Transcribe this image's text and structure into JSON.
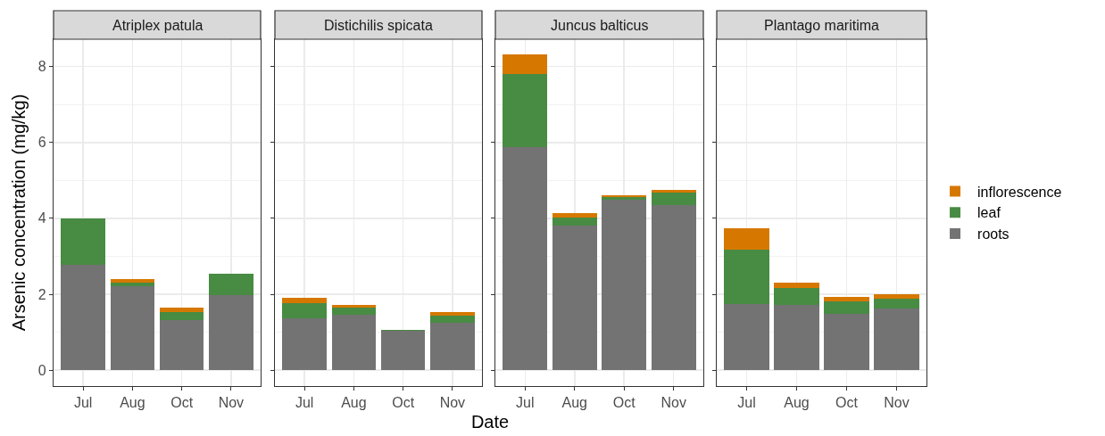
{
  "chart_data": [
    {
      "type": "bar",
      "title": "Atriplex patula",
      "ylabel": "Arsenic concentration (mg/kg)",
      "categories": [
        "Jul",
        "Aug",
        "Oct",
        "Nov"
      ],
      "stacked": true,
      "grid": true,
      "ylim": [
        -0.42,
        8.72
      ],
      "yticks": [
        0,
        2,
        4,
        6,
        8
      ],
      "series": [
        {
          "color": "#737373",
          "values": [
            2.77,
            2.22,
            1.32,
            1.98
          ]
        },
        {
          "color": "#488b43",
          "values": [
            1.22,
            0.09,
            0.21,
            0.56
          ]
        },
        {
          "color": "#d67800",
          "values": [
            0,
            0.09,
            0.12,
            0
          ]
        }
      ]
    },
    {
      "type": "bar",
      "title": "Distichilis spicata",
      "xlabel": "Date",
      "categories": [
        "Jul",
        "Aug",
        "Oct",
        "Nov"
      ],
      "stacked": true,
      "grid": true,
      "tick_labels": "x",
      "ylim": [
        -0.42,
        8.72
      ],
      "yticks": [
        0,
        2,
        4,
        6,
        8
      ],
      "series": [
        {
          "color": "#737373",
          "values": [
            1.37,
            1.46,
            1.03,
            1.26
          ]
        },
        {
          "color": "#488b43",
          "values": [
            0.4,
            0.19,
            0.04,
            0.18
          ]
        },
        {
          "color": "#d67800",
          "values": [
            0.14,
            0.07,
            0,
            0.09
          ]
        }
      ]
    },
    {
      "type": "bar",
      "title": "Juncus balticus",
      "categories": [
        "Jul",
        "Aug",
        "Oct",
        "Nov"
      ],
      "stacked": true,
      "grid": true,
      "tick_labels": "x",
      "ylim": [
        -0.42,
        8.72
      ],
      "yticks": [
        0,
        2,
        4,
        6,
        8
      ],
      "series": [
        {
          "color": "#737373",
          "values": [
            5.88,
            3.8,
            4.5,
            4.34
          ]
        },
        {
          "color": "#488b43",
          "values": [
            1.92,
            0.23,
            0.07,
            0.33
          ]
        },
        {
          "color": "#d67800",
          "values": [
            0.51,
            0.12,
            0.05,
            0.09
          ]
        }
      ]
    },
    {
      "type": "bar",
      "title": "Plantago maritima",
      "categories": [
        "Jul",
        "Aug",
        "Oct",
        "Nov"
      ],
      "stacked": true,
      "grid": true,
      "tick_labels": "x",
      "legend": "right",
      "ylim": [
        -0.42,
        8.72
      ],
      "yticks": [
        0,
        2,
        4,
        6,
        8
      ],
      "series": [
        {
          "name": "roots",
          "color": "#737373",
          "values": [
            1.74,
            1.72,
            1.49,
            1.63
          ]
        },
        {
          "name": "leaf",
          "color": "#488b43",
          "values": [
            1.43,
            0.45,
            0.32,
            0.25
          ]
        },
        {
          "name": "inflorescence",
          "color": "#d67800",
          "values": [
            0.56,
            0.14,
            0.12,
            0.12
          ]
        }
      ]
    }
  ]
}
